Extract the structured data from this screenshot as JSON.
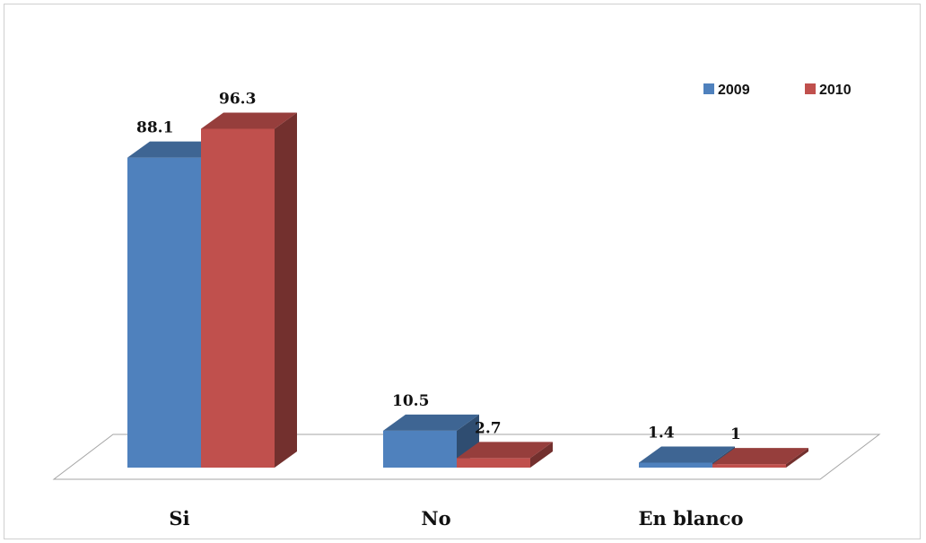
{
  "chart_data": {
    "type": "bar",
    "three_d": true,
    "categories": [
      "Si",
      "No",
      "En blanco"
    ],
    "series": [
      {
        "name": "2009",
        "values": [
          88.1,
          10.5,
          1.4
        ],
        "labels": [
          "88.1",
          "10.5",
          "1.4"
        ],
        "color": "#4f81bd"
      },
      {
        "name": "2010",
        "values": [
          96.3,
          2.7,
          1
        ],
        "labels": [
          "96.3",
          "2.7",
          "1"
        ],
        "color": "#c0504d"
      }
    ],
    "ylim": [
      0,
      100
    ],
    "grid": false,
    "legend_position": "top-right"
  }
}
